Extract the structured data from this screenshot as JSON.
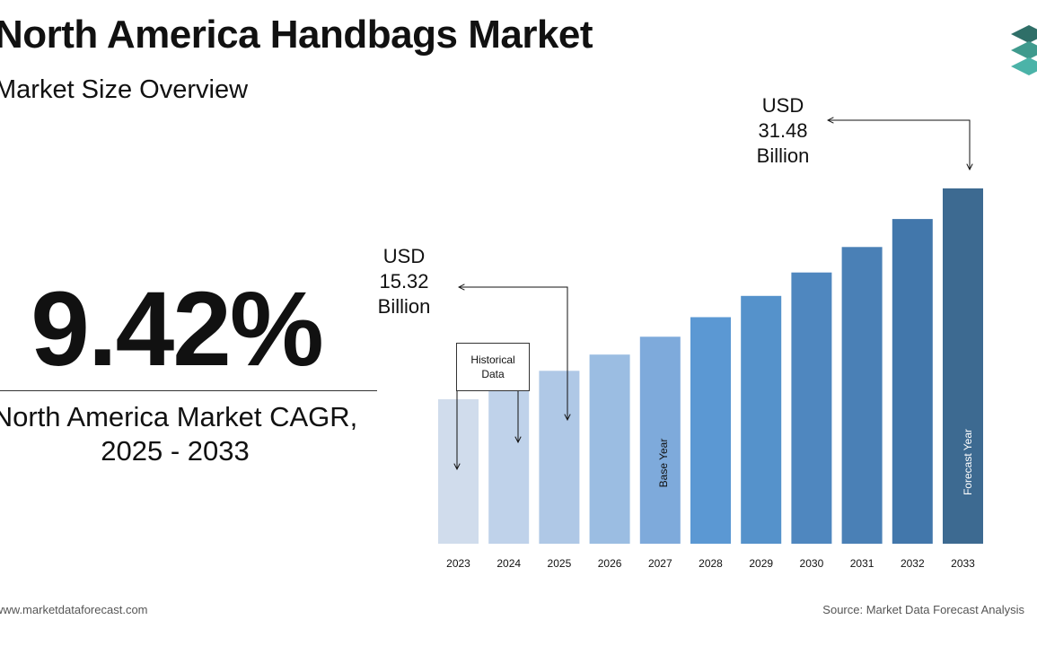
{
  "header": {
    "title": "North America Handbags Market",
    "subtitle": "Market Size Overview"
  },
  "cagr": {
    "value": "9.42%",
    "label_line1": "North America Market CAGR,",
    "label_line2": "2025 - 2033"
  },
  "callouts": {
    "start": {
      "line1": "USD",
      "line2": "15.32",
      "line3": "Billion"
    },
    "end": {
      "line1": "USD",
      "line2": "31.48",
      "line3": "Billion"
    }
  },
  "annotations": {
    "historical_line1": "Historical",
    "historical_line2": "Data",
    "base_year": "Base Year",
    "forecast_year": "Forecast Year"
  },
  "footer": {
    "website": "www.marketdataforecast.com",
    "source": "Source: Market Data Forecast Analysis"
  },
  "colors": {
    "bars": [
      "#d0dcec",
      "#bfd2ea",
      "#afc8e6",
      "#9bbde2",
      "#7eaadb",
      "#5b98d3",
      "#5592cb",
      "#4f87bf",
      "#4a80b6",
      "#4277ab",
      "#3d6a91"
    ],
    "logo": [
      "#2f6f68",
      "#3f9a8d",
      "#4bb3a8"
    ]
  },
  "chart_data": {
    "type": "bar",
    "categories": [
      "2023",
      "2024",
      "2025",
      "2026",
      "2027",
      "2028",
      "2029",
      "2030",
      "2031",
      "2032",
      "2033"
    ],
    "values": [
      12.8,
      14.0,
      15.32,
      16.76,
      18.34,
      20.07,
      21.96,
      24.03,
      26.29,
      28.77,
      31.48
    ]
  }
}
